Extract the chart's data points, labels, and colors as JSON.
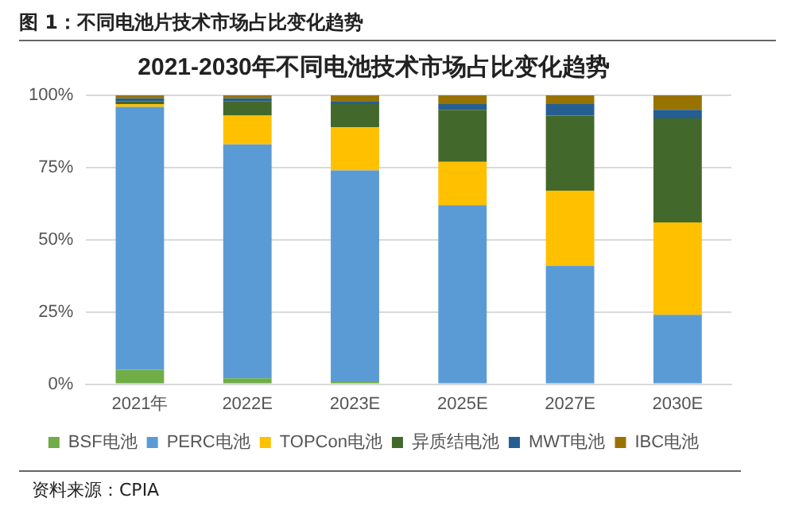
{
  "chart_data": {
    "type": "bar",
    "stacked": true,
    "title": "2021-2030年不同电池技术市场占比变化趋势",
    "annotations": [
      "图 1：不同电池片技术市场占比变化趋势",
      "资料来源：CPIA"
    ],
    "categories": [
      "2021年",
      "2022E",
      "2023E",
      "2025E",
      "2027E",
      "2030E"
    ],
    "series": [
      {
        "name": "BSF电池",
        "color": "#70ad47",
        "values": [
          5,
          2,
          1,
          0,
          0,
          0
        ]
      },
      {
        "name": "PERC电池",
        "color": "#5b9bd5",
        "values": [
          91,
          81,
          73,
          62,
          41,
          24
        ]
      },
      {
        "name": "TOPCon电池",
        "color": "#ffc000",
        "values": [
          1,
          10,
          15,
          15,
          26,
          32
        ]
      },
      {
        "name": "异质结电池",
        "color": "#43682b",
        "values": [
          1,
          5,
          8,
          18,
          26,
          36
        ]
      },
      {
        "name": "MWT电池",
        "color": "#255e91",
        "values": [
          1,
          1,
          1,
          2,
          4,
          3
        ]
      },
      {
        "name": "IBC电池",
        "color": "#997300",
        "values": [
          1,
          1,
          2,
          3,
          3,
          5
        ]
      }
    ],
    "ylim": [
      0,
      100
    ],
    "yticks": [
      {
        "value": 0,
        "label": "0%"
      },
      {
        "value": 25,
        "label": "25%"
      },
      {
        "value": 50,
        "label": "50%"
      },
      {
        "value": 75,
        "label": "75%"
      },
      {
        "value": 100,
        "label": "100%"
      }
    ],
    "grid": "y",
    "legend": "bottom"
  }
}
